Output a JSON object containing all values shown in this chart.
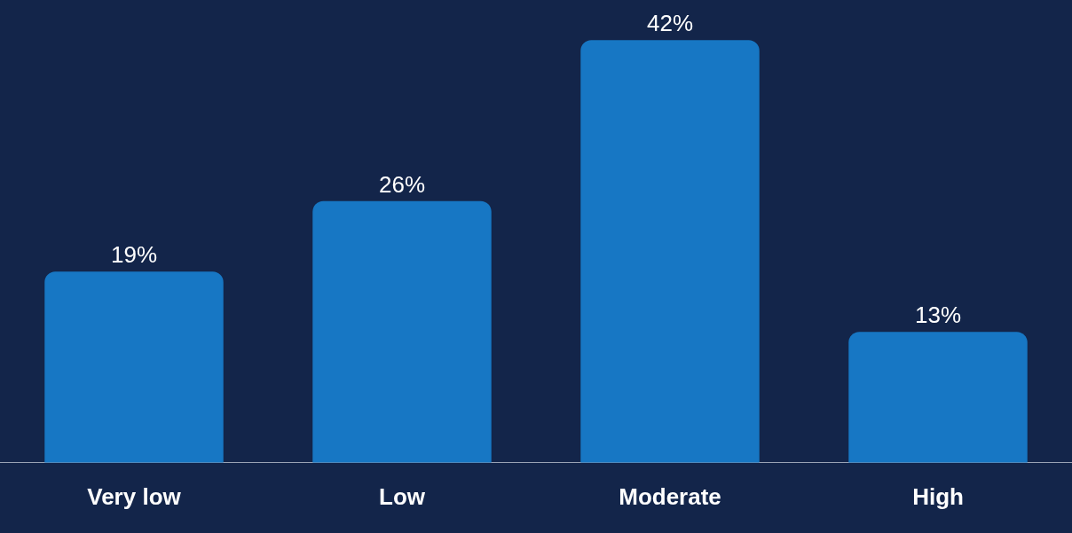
{
  "chart_data": {
    "type": "bar",
    "categories": [
      "Very low",
      "Low",
      "Moderate",
      "High"
    ],
    "values": [
      19,
      26,
      42,
      13
    ],
    "color": "#1777c4",
    "value_labels": [
      "19%",
      "26%",
      "42%",
      "13%"
    ],
    "legend": false,
    "grid": false
  }
}
